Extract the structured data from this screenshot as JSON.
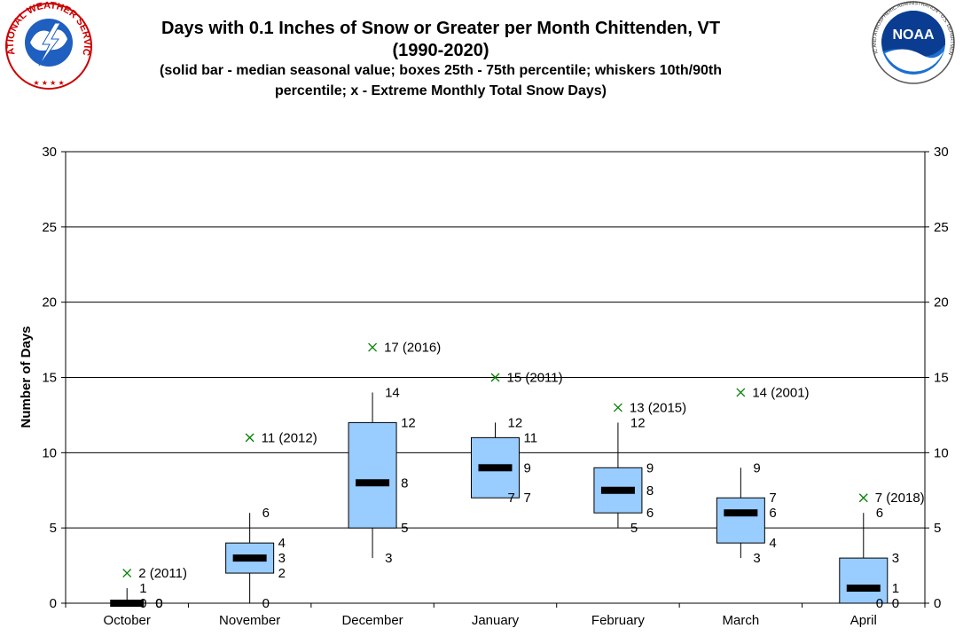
{
  "header": {
    "title_line1": "Days with 0.1 Inches of Snow or Greater per Month Chittenden, VT",
    "title_line2": "(1990-2020)",
    "subtitle_line1": "(solid bar - median seasonal value; boxes 25th - 75th percentile; whiskers 10th/90th",
    "subtitle_line2": "percentile; x - Extreme Monthly Total Snow Days)"
  },
  "logos": {
    "nws": {
      "text": "NATIONAL WEATHER SERVICE",
      "icon": "nws-logo"
    },
    "noaa": {
      "text": "NOAA",
      "ring_text": "NATIONAL OCEANIC AND ATMOSPHERIC ADMINISTRATION · U.S. DEPARTMENT OF COMMERCE",
      "icon": "noaa-logo"
    }
  },
  "colors": {
    "box_fill": "#99ccff",
    "median": "#000000",
    "extreme_marker": "#008000",
    "grid": "#000000"
  },
  "chart_data": {
    "type": "box",
    "title": "Days with 0.1 Inches of Snow or Greater per Month Chittenden, VT",
    "ylabel": "Number of Days",
    "xlabel": "",
    "ylim": [
      0,
      30
    ],
    "yticks": [
      0,
      5,
      10,
      15,
      20,
      25,
      30
    ],
    "grid": true,
    "categories": [
      "October",
      "November",
      "December",
      "January",
      "February",
      "March",
      "April"
    ],
    "series": [
      {
        "category": "October",
        "p10": 0,
        "p25": 0,
        "median": 0,
        "p75": 0,
        "p90": 1,
        "extreme": 2,
        "extreme_year": "2011",
        "labels": {
          "p10": "0",
          "p25": "0",
          "median": "0",
          "p75": "0",
          "p90": "1",
          "extreme": "2 (2011)"
        }
      },
      {
        "category": "November",
        "p10": 0,
        "p25": 2,
        "median": 3,
        "p75": 4,
        "p90": 6,
        "extreme": 11,
        "extreme_year": "2012",
        "labels": {
          "p10": "0",
          "p25": "2",
          "median": "3",
          "p75": "4",
          "p90": "6",
          "extreme": "11 (2012)"
        }
      },
      {
        "category": "December",
        "p10": 3,
        "p25": 5,
        "median": 8,
        "p75": 12,
        "p90": 14,
        "extreme": 17,
        "extreme_year": "2016",
        "labels": {
          "p10": "3",
          "p25": "5",
          "median": "8",
          "p75": "12",
          "p90": "14",
          "extreme": "17 (2016)"
        }
      },
      {
        "category": "January",
        "p10": 7,
        "p25": 7,
        "median": 9,
        "p75": 11,
        "p90": 12,
        "extreme": 15,
        "extreme_year": "2011",
        "labels": {
          "p10": "7",
          "p25": "7",
          "median": "9",
          "p75": "11",
          "p90": "12",
          "extreme": "15 (2011)"
        }
      },
      {
        "category": "February",
        "p10": 5,
        "p25": 6,
        "median": 7.5,
        "p75": 9,
        "p90": 12,
        "extreme": 13,
        "extreme_year": "2015",
        "labels": {
          "p10": "5",
          "p25": "6",
          "median": "8",
          "p75": "9",
          "p90": "12",
          "extreme": "13 (2015)"
        }
      },
      {
        "category": "March",
        "p10": 3,
        "p25": 4,
        "median": 6,
        "p75": 7,
        "p90": 9,
        "extreme": 14,
        "extreme_year": "2001",
        "labels": {
          "p10": "3",
          "p25": "4",
          "median": "6",
          "p75": "7",
          "p90": "9",
          "extreme": "14 (2001)"
        }
      },
      {
        "category": "April",
        "p10": 0,
        "p25": 0,
        "median": 1,
        "p75": 3,
        "p90": 6,
        "extreme": 7,
        "extreme_year": "2018",
        "labels": {
          "p10": "0",
          "p25": "0",
          "median": "1",
          "p75": "3",
          "p90": "6",
          "extreme": "7 (2018)"
        }
      }
    ]
  }
}
